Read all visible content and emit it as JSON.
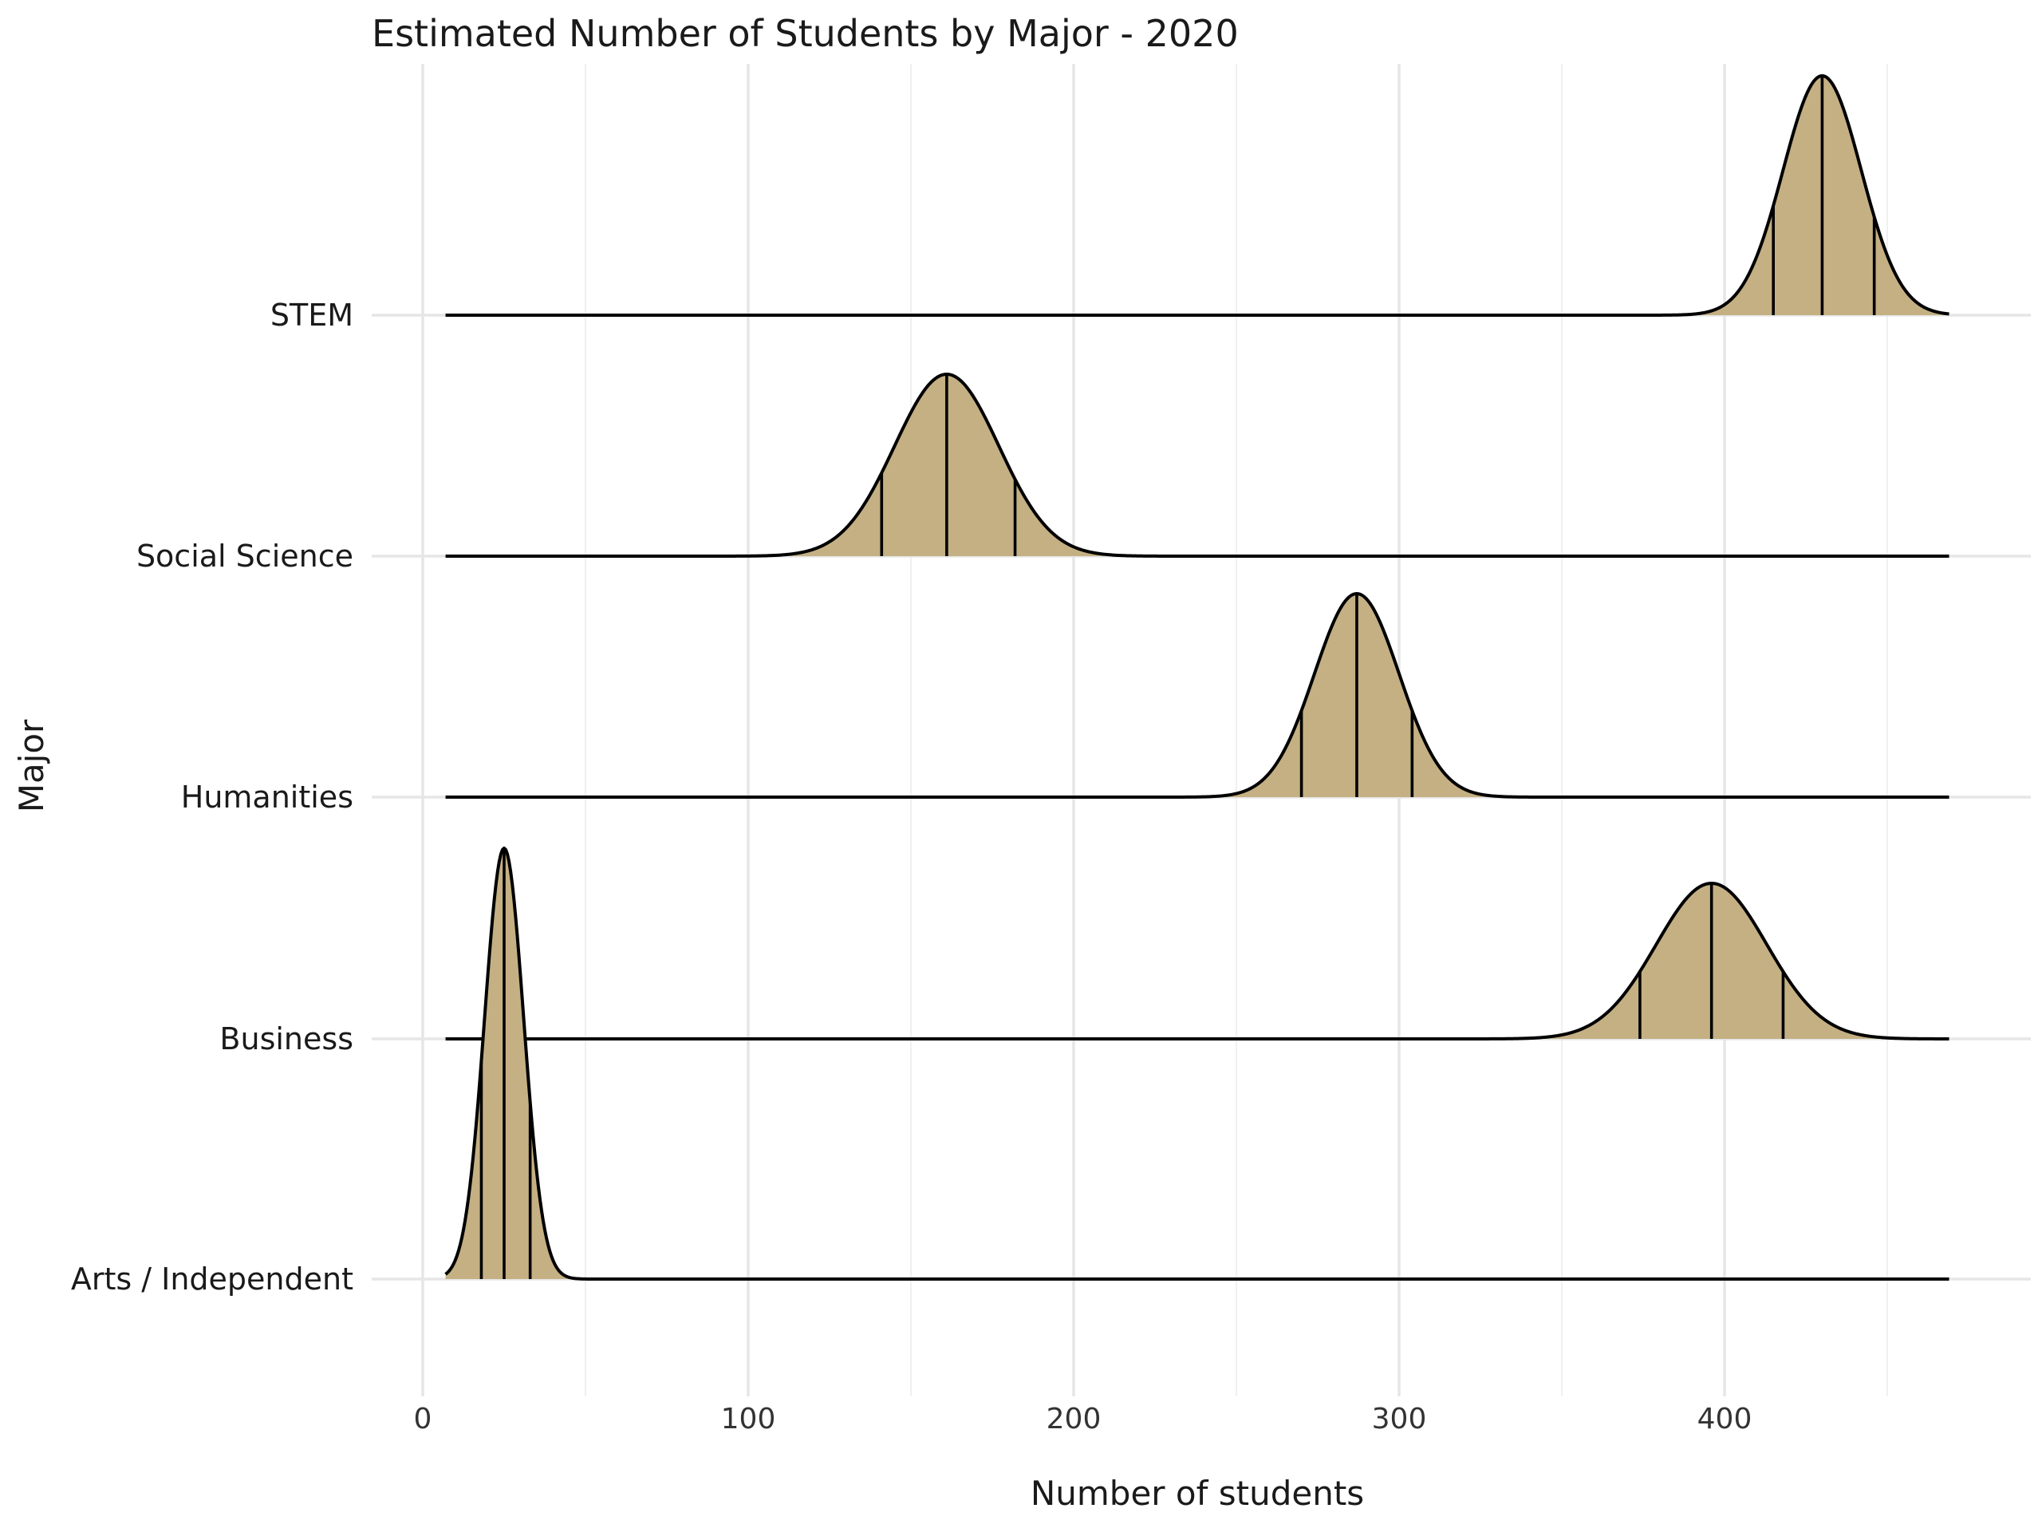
{
  "chart_data": {
    "type": "ridgeline",
    "title": "Estimated Number of Students by Major - 2020",
    "xlabel": "Number of students",
    "ylabel": "Major",
    "xlim": [
      -8,
      493
    ],
    "x_ticks": [
      0,
      100,
      200,
      300,
      400
    ],
    "grid": true,
    "fill_color": "#c4b083",
    "line_color": "#000000",
    "support": [
      7,
      469
    ],
    "categories": [
      "Arts / Independent",
      "Business",
      "Humanities",
      "Social Science",
      "STEM"
    ],
    "series": [
      {
        "name": "Arts / Independent",
        "mean": 25,
        "sd": 6,
        "quantiles": [
          18,
          25,
          33
        ],
        "peak_ratio": 1.8
      },
      {
        "name": "Business",
        "mean": 396,
        "sd": 17,
        "quantiles": [
          374,
          396,
          418
        ],
        "peak_ratio": 0.65
      },
      {
        "name": "Humanities",
        "mean": 287,
        "sd": 13,
        "quantiles": [
          270,
          287,
          304
        ],
        "peak_ratio": 0.85
      },
      {
        "name": "Social Science",
        "mean": 161,
        "sd": 16,
        "quantiles": [
          141,
          161,
          182
        ],
        "peak_ratio": 0.76
      },
      {
        "name": "STEM",
        "mean": 430,
        "sd": 12,
        "quantiles": [
          415,
          430,
          446
        ],
        "peak_ratio": 1.0
      }
    ]
  }
}
